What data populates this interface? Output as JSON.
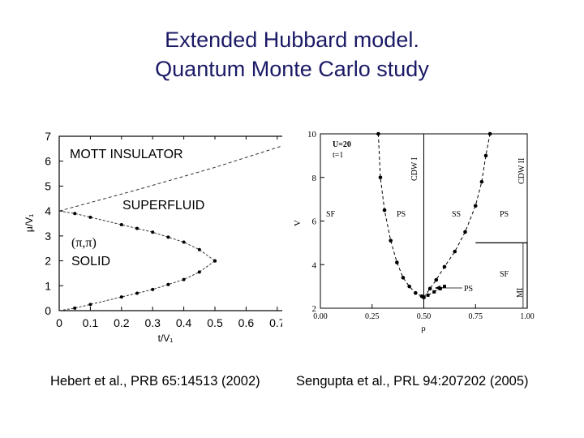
{
  "slide": {
    "title_line1": "Extended Hubbard model.",
    "title_line2": "Quantum Monte Carlo study",
    "citation_left": "Hebert et al., PRB 65:14513 (2002)",
    "citation_right": "Sengupta et al., PRL 94:207202 (2005)"
  },
  "chart_data": [
    {
      "type": "line",
      "xlabel": "t/V₁",
      "ylabel": "μ/V₁",
      "xlim": [
        0,
        0.75
      ],
      "ylim": [
        0,
        7
      ],
      "x_ticks": [
        "0",
        "0.1",
        "0.2",
        "0.3",
        "0.4",
        "0.5",
        "0.6",
        "0.7"
      ],
      "y_ticks": [
        "0",
        "1",
        "2",
        "3",
        "4",
        "5",
        "6",
        "7"
      ],
      "region_labels": {
        "mott": "MOTT INSULATOR",
        "superfluid": "SUPERFLUID",
        "solid_top": "(π,π)",
        "solid_bottom": "SOLID"
      },
      "series": [
        {
          "x": [
            0,
            0.25,
            0.5,
            0.75
          ],
          "y": [
            4,
            4.85,
            5.75,
            6.75
          ]
        },
        {
          "x": [
            0,
            0.05,
            0.1,
            0.2,
            0.25,
            0.3,
            0.35,
            0.4,
            0.45,
            0.5
          ],
          "y": [
            4,
            3.9,
            3.75,
            3.45,
            3.3,
            3.15,
            2.95,
            2.75,
            2.45,
            2.0
          ]
        },
        {
          "x": [
            0,
            0.05,
            0.1,
            0.2,
            0.25,
            0.3,
            0.35,
            0.4,
            0.45,
            0.5
          ],
          "y": [
            0,
            0.1,
            0.25,
            0.55,
            0.7,
            0.85,
            1.05,
            1.25,
            1.55,
            2.0
          ]
        }
      ]
    },
    {
      "type": "scatter",
      "xlabel": "ρ",
      "ylabel": "V",
      "xlim": [
        0,
        1
      ],
      "ylim": [
        2,
        10
      ],
      "x_ticks": [
        "0.00",
        "0.25",
        "0.50",
        "0.75",
        "1.00"
      ],
      "y_ticks": [
        "2",
        "4",
        "6",
        "8",
        "10"
      ],
      "legend_line1": "U=20",
      "legend_line2": "t=1",
      "region_labels": {
        "sf_left": "SF",
        "ps_left": "PS",
        "ss": "SS",
        "ps_right": "PS",
        "sf_right": "SF",
        "ps_arrow": "PS",
        "cdw1": "CDW I",
        "cdw2": "CDW II",
        "mi": "MI"
      },
      "series": [
        {
          "x": [
            0.28,
            0.29,
            0.31,
            0.34,
            0.37,
            0.4,
            0.43,
            0.46,
            0.49,
            0.5
          ],
          "y": [
            10,
            8,
            6.5,
            5.1,
            4.1,
            3.4,
            3.0,
            2.7,
            2.55,
            2.5
          ]
        },
        {
          "x": [
            0.5,
            0.53,
            0.56,
            0.6,
            0.65,
            0.7,
            0.75,
            0.78,
            0.8,
            0.82
          ],
          "y": [
            2.5,
            2.9,
            3.3,
            3.9,
            4.6,
            5.5,
            6.7,
            7.8,
            9.0,
            10
          ]
        },
        {
          "x": [
            0.5,
            0.52,
            0.55,
            0.58,
            0.6
          ],
          "y": [
            2.5,
            2.6,
            2.75,
            2.9,
            3.0
          ]
        }
      ]
    }
  ]
}
